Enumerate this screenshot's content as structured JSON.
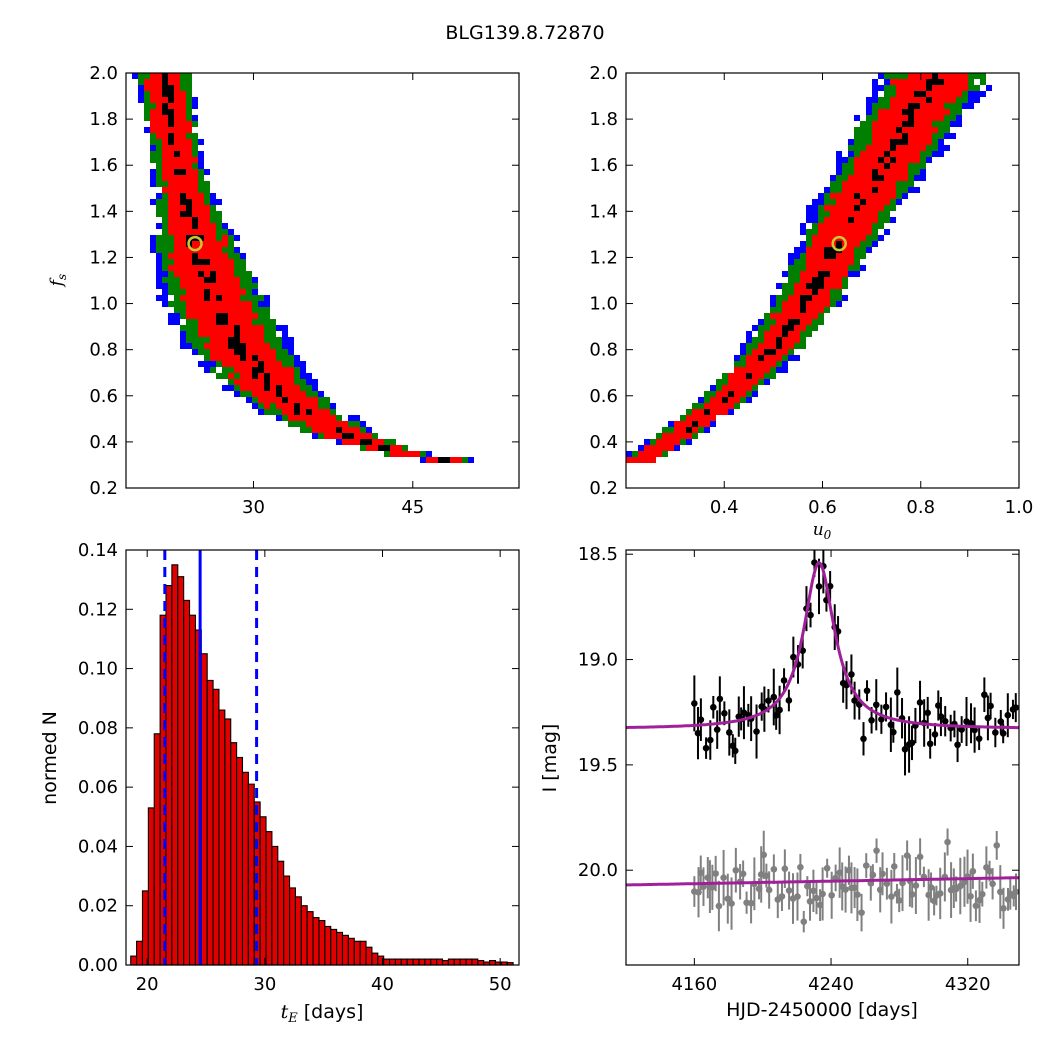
{
  "figure_title": "BLG139.8.72870",
  "colors": {
    "outer_region": "#0000ff",
    "mid_region": "#007f00",
    "inner_region": "#ff0000",
    "core_points": "#000000",
    "best_fit_ring": "#c8c832",
    "histogram_bar": "#e00000",
    "median_line": "#0000ff",
    "model_curve": "#a0209a",
    "data_lens": "#000000",
    "data_other": "#808080"
  },
  "chart_data": [
    {
      "type": "heatmap",
      "name": "tE vs fs",
      "xlabel": "",
      "ylabel": "f_s",
      "xlim": [
        18,
        55
      ],
      "ylim": [
        0.2,
        2.0
      ],
      "xticks": [
        "30",
        "45"
      ],
      "xtick_values": [
        30,
        45
      ],
      "yticks": [
        "0.2",
        "0.4",
        "0.6",
        "0.8",
        "1.0",
        "1.2",
        "1.4",
        "1.6",
        "1.8",
        "2.0"
      ],
      "ridge": [
        [
          21.7,
          2.0
        ],
        [
          22.2,
          1.8
        ],
        [
          22.9,
          1.6
        ],
        [
          23.8,
          1.4
        ],
        [
          25.0,
          1.2
        ],
        [
          26.6,
          1.0
        ],
        [
          28.8,
          0.8
        ],
        [
          31.5,
          0.65
        ],
        [
          35.0,
          0.52
        ],
        [
          39.0,
          0.42
        ],
        [
          44.0,
          0.35
        ],
        [
          49.5,
          0.31
        ]
      ],
      "best_fit": {
        "x": 24.5,
        "y": 1.26
      },
      "levels": [
        "outer",
        "mid",
        "inner",
        "core"
      ]
    },
    {
      "type": "heatmap",
      "name": "u0 vs fs",
      "xlabel": "u_0",
      "ylabel": "",
      "xlim": [
        0.2,
        1.0
      ],
      "ylim": [
        0.2,
        2.0
      ],
      "xticks": [
        "0.4",
        "0.6",
        "0.8",
        "1.0"
      ],
      "yticks": [
        "0.2",
        "0.4",
        "0.6",
        "0.8",
        "1.0",
        "1.2",
        "1.4",
        "1.6",
        "1.8",
        "2.0"
      ],
      "ridge": [
        [
          0.22,
          0.31
        ],
        [
          0.3,
          0.42
        ],
        [
          0.4,
          0.58
        ],
        [
          0.5,
          0.8
        ],
        [
          0.58,
          1.05
        ],
        [
          0.63,
          1.26
        ],
        [
          0.68,
          1.45
        ],
        [
          0.74,
          1.65
        ],
        [
          0.8,
          1.88
        ],
        [
          0.835,
          2.0
        ]
      ],
      "best_fit": {
        "x": 0.634,
        "y": 1.26
      },
      "levels": [
        "outer",
        "mid",
        "inner",
        "core"
      ]
    },
    {
      "type": "bar",
      "name": "tE histogram",
      "xlabel": "t_E",
      "xlabel_suffix": " [days]",
      "ylabel": "normed N",
      "xlim": [
        18.2,
        51.6
      ],
      "ylim": [
        0.0,
        0.14
      ],
      "xticks": [
        "20",
        "30",
        "40",
        "50"
      ],
      "yticks": [
        "0.00",
        "0.02",
        "0.04",
        "0.06",
        "0.08",
        "0.10",
        "0.12",
        "0.14"
      ],
      "bin_start": 18.6,
      "bin_width": 0.5,
      "values": [
        0.003,
        0.008,
        0.025,
        0.053,
        0.078,
        0.118,
        0.128,
        0.135,
        0.131,
        0.123,
        0.118,
        0.113,
        0.105,
        0.096,
        0.093,
        0.086,
        0.083,
        0.075,
        0.07,
        0.065,
        0.061,
        0.055,
        0.05,
        0.045,
        0.04,
        0.035,
        0.03,
        0.026,
        0.023,
        0.02,
        0.018,
        0.016,
        0.015,
        0.013,
        0.012,
        0.011,
        0.01,
        0.009,
        0.008,
        0.008,
        0.006,
        0.004,
        0.003,
        0.002,
        0.002,
        0.002,
        0.002,
        0.002,
        0.002,
        0.002,
        0.002,
        0.002,
        0.002,
        0.0015,
        0.002,
        0.002,
        0.002,
        0.002,
        0.002,
        0.0015,
        0.001,
        0.0015,
        0.001,
        0.001,
        0.0008
      ],
      "median": 24.5,
      "interval": [
        21.5,
        29.3
      ]
    },
    {
      "type": "line",
      "name": "light curve",
      "xlabel": "HJD-2450000 [days]",
      "ylabel": "I [mag]",
      "xlim": [
        4120,
        4350
      ],
      "ylim": [
        20.45,
        18.48
      ],
      "xticks": [
        "4160",
        "4240",
        "4320"
      ],
      "xtick_values": [
        4160,
        4240,
        4320
      ],
      "yticks": [
        "18.5",
        "19.0",
        "19.5",
        "20.0"
      ],
      "ytick_values": [
        18.5,
        19.0,
        19.5,
        20.0
      ],
      "model_top": {
        "t0": 4233,
        "baseline": 19.33,
        "peak": 18.54,
        "width": 13
      },
      "model_bottom": {
        "baseline": 20.07,
        "slope": -0.00015
      },
      "series": [
        {
          "name": "",
          "color_key": "data_lens",
          "t_start": 4160,
          "t_end": 4350,
          "spacing": 2.3,
          "baseline": 19.33,
          "peak": 18.55,
          "t0": 4233,
          "width": 13,
          "scatter": 0.07,
          "err": 0.09
        },
        {
          "name": "",
          "color_key": "data_other",
          "t_start": 4160,
          "t_end": 4350,
          "spacing": 2.0,
          "baseline": 20.07,
          "scatter": 0.07,
          "err": 0.09
        }
      ]
    }
  ]
}
